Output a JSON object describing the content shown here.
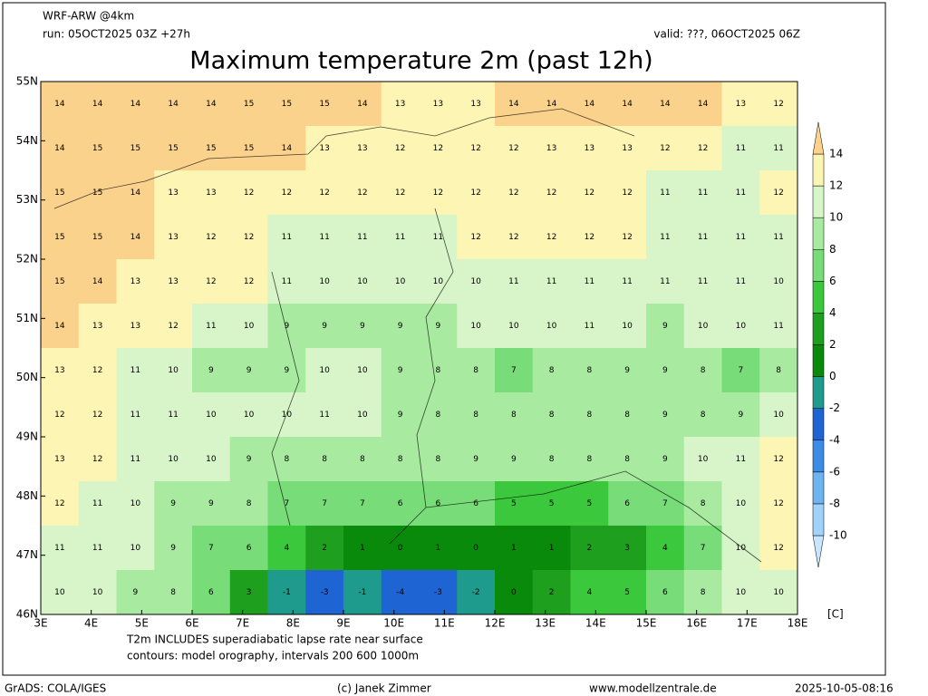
{
  "header": {
    "model": "WRF-ARW @4km",
    "run": "run: 05OCT2025 03Z +27h",
    "valid": "valid: ???, 06OCT2025 06Z",
    "title": "Maximum temperature 2m (past 12h)"
  },
  "map": {
    "lat_labels": [
      "46N",
      "47N",
      "48N",
      "49N",
      "50N",
      "51N",
      "52N",
      "53N",
      "54N",
      "55N"
    ],
    "lon_labels": [
      "3E",
      "4E",
      "5E",
      "6E",
      "7E",
      "8E",
      "9E",
      "10E",
      "11E",
      "12E",
      "13E",
      "14E",
      "15E",
      "16E",
      "17E",
      "18E"
    ],
    "grid": [
      [
        14,
        14,
        14,
        14,
        14,
        15,
        15,
        15,
        14,
        13,
        13,
        13,
        14,
        14,
        14,
        14,
        14,
        14,
        13,
        12
      ],
      [
        14,
        15,
        15,
        15,
        15,
        15,
        14,
        13,
        13,
        12,
        12,
        12,
        12,
        13,
        13,
        13,
        12,
        12,
        11,
        11
      ],
      [
        15,
        15,
        14,
        13,
        13,
        12,
        12,
        12,
        12,
        12,
        12,
        12,
        12,
        12,
        12,
        12,
        11,
        11,
        11,
        12
      ],
      [
        15,
        15,
        14,
        13,
        12,
        12,
        11,
        11,
        11,
        11,
        11,
        12,
        12,
        12,
        12,
        12,
        11,
        11,
        11,
        11
      ],
      [
        15,
        14,
        13,
        13,
        12,
        12,
        11,
        10,
        10,
        10,
        10,
        10,
        11,
        11,
        11,
        11,
        11,
        11,
        11,
        10
      ],
      [
        14,
        13,
        13,
        12,
        11,
        10,
        9,
        9,
        9,
        9,
        9,
        10,
        10,
        10,
        11,
        10,
        9,
        10,
        10,
        11
      ],
      [
        13,
        12,
        11,
        10,
        9,
        9,
        9,
        10,
        10,
        9,
        8,
        8,
        7,
        8,
        8,
        9,
        9,
        8,
        7,
        8
      ],
      [
        12,
        12,
        11,
        11,
        10,
        10,
        10,
        11,
        10,
        9,
        8,
        8,
        8,
        8,
        8,
        8,
        9,
        8,
        9,
        10
      ],
      [
        13,
        12,
        11,
        10,
        10,
        9,
        8,
        8,
        8,
        8,
        8,
        9,
        9,
        8,
        8,
        8,
        9,
        10,
        11,
        12
      ],
      [
        12,
        11,
        10,
        9,
        9,
        8,
        7,
        7,
        7,
        6,
        6,
        6,
        5,
        5,
        5,
        6,
        7,
        8,
        10,
        12
      ],
      [
        11,
        11,
        10,
        9,
        7,
        6,
        4,
        2,
        1,
        0,
        1,
        0,
        1,
        1,
        2,
        3,
        4,
        7,
        10,
        12
      ],
      [
        10,
        10,
        9,
        8,
        6,
        3,
        -1,
        -3,
        -1,
        -4,
        -3,
        -2,
        0,
        2,
        4,
        5,
        6,
        8,
        10,
        10
      ]
    ]
  },
  "legend": {
    "ticks": [
      -10,
      -8,
      -6,
      -4,
      -2,
      0,
      2,
      4,
      6,
      8,
      10,
      12,
      14
    ],
    "colors": [
      "#c8e6ff",
      "#a0d2fa",
      "#6eb4f0",
      "#3c8ce6",
      "#1e64d2",
      "#1e9b8c",
      "#0a8a0a",
      "#1ea01e",
      "#3cc83c",
      "#78dc78",
      "#a8eba0",
      "#d7f5c8",
      "#fdf5b4",
      "#fad28c"
    ],
    "unit": "[C]"
  },
  "notes": [
    "T2m INCLUDES superadiabatic lapse rate near surface",
    "contours: model orography, intervals 200 600 1000m"
  ],
  "footer": {
    "left": "GrADS: COLA/IGES",
    "center": "(c) Janek Zimmer",
    "site": "www.modellzentrale.de",
    "time": "2025-10-05-08:16"
  }
}
